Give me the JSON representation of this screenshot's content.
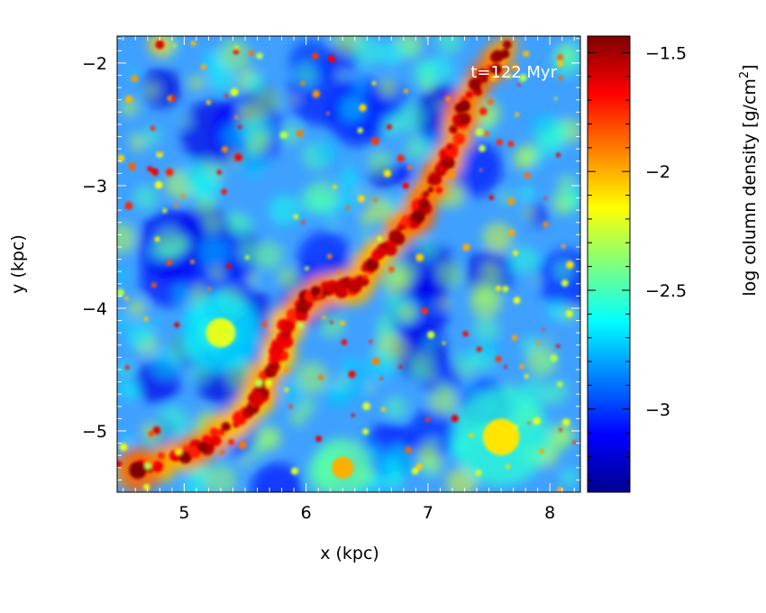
{
  "chart_data": {
    "type": "heatmap",
    "title": "",
    "annotation": "t=122 Myr",
    "xlabel": "x (kpc)",
    "ylabel": "y (kpc)",
    "xlim": [
      4.45,
      8.25
    ],
    "ylim": [
      -5.5,
      -1.78
    ],
    "x_ticks": [
      {
        "value": 5,
        "label": "5"
      },
      {
        "value": 6,
        "label": "6"
      },
      {
        "value": 7,
        "label": "7"
      },
      {
        "value": 8,
        "label": "8"
      }
    ],
    "y_ticks": [
      {
        "value": -2,
        "label": "−2"
      },
      {
        "value": -3,
        "label": "−3"
      },
      {
        "value": -4,
        "label": "−4"
      },
      {
        "value": -5,
        "label": "−5"
      }
    ],
    "colorbar": {
      "label_prefix": "log column density [g/cm",
      "label_sup": "2",
      "label_suffix": "]",
      "range": [
        -3.35,
        -1.43
      ],
      "colormap": [
        "#00008f",
        "#0000ff",
        "#007fff",
        "#00ffff",
        "#7fff7f",
        "#ffff00",
        "#ff7f00",
        "#ff0000",
        "#7f0000"
      ],
      "ticks": [
        {
          "value": -1.5,
          "label": "−1.5"
        },
        {
          "value": -2,
          "label": "−2"
        },
        {
          "value": -2.5,
          "label": "−2.5"
        },
        {
          "value": -3,
          "label": "−3"
        }
      ]
    },
    "field": {
      "background_level": -2.8,
      "features": [
        {
          "x": 4.62,
          "y": -5.32,
          "value": -1.4,
          "width": 0.12
        },
        {
          "x": 5.15,
          "y": -5.13,
          "value": -1.45,
          "width": 0.07
        },
        {
          "x": 5.6,
          "y": -4.75,
          "value": -1.6,
          "width": 0.09
        },
        {
          "x": 5.75,
          "y": -4.4,
          "value": -1.65,
          "width": 0.08
        },
        {
          "x": 5.85,
          "y": -4.15,
          "value": -1.6,
          "width": 0.09
        },
        {
          "x": 6.08,
          "y": -3.86,
          "value": -1.45,
          "width": 0.07
        },
        {
          "x": 6.4,
          "y": -3.82,
          "value": -1.55,
          "width": 0.1
        },
        {
          "x": 6.6,
          "y": -3.55,
          "value": -1.6,
          "width": 0.08
        },
        {
          "x": 6.92,
          "y": -3.25,
          "value": -1.4,
          "width": 0.09
        },
        {
          "x": 7.15,
          "y": -2.82,
          "value": -1.5,
          "width": 0.08
        },
        {
          "x": 7.3,
          "y": -2.35,
          "value": -1.45,
          "width": 0.08
        },
        {
          "x": 7.65,
          "y": -1.85,
          "value": -1.5,
          "width": 0.06
        },
        {
          "x": 4.8,
          "y": -1.85,
          "value": -1.6,
          "width": 0.06
        },
        {
          "x": 6.3,
          "y": -5.3,
          "value": -2.0,
          "width": 0.15
        },
        {
          "x": 7.6,
          "y": -5.05,
          "value": -2.1,
          "width": 0.25
        },
        {
          "x": 5.3,
          "y": -4.2,
          "value": -2.2,
          "width": 0.2
        }
      ]
    }
  }
}
